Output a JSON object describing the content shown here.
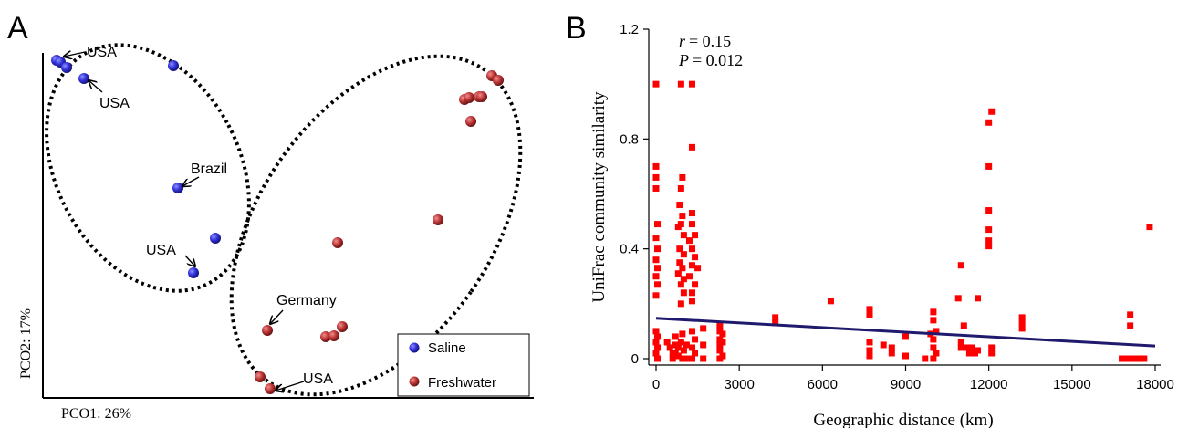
{
  "chart_data": [
    {
      "type": "scatter",
      "panel_label": "A",
      "xlabel": "PCO1: 26%",
      "ylabel": "PCO2: 17%",
      "grid": false,
      "legend_placement": "bottom-right",
      "series": [
        {
          "name": "Saline",
          "color": "#2b2bc8",
          "points": [
            [
              62,
              66
            ],
            [
              66,
              68
            ],
            [
              73,
              74
            ],
            [
              92,
              86
            ],
            [
              190,
              72
            ],
            [
              195,
              206
            ],
            [
              236,
              261
            ],
            [
              212,
              299
            ]
          ]
        },
        {
          "name": "Freshwater",
          "color": "#b83232",
          "points": [
            [
              539,
              83
            ],
            [
              546,
              88
            ],
            [
              509,
              109
            ],
            [
              514,
              107
            ],
            [
              525,
              106
            ],
            [
              528,
              106
            ],
            [
              516,
              133
            ],
            [
              480,
              241
            ],
            [
              370,
              266
            ],
            [
              293,
              362
            ],
            [
              357,
              369
            ],
            [
              366,
              368
            ],
            [
              375,
              358
            ],
            [
              285,
              413
            ],
            [
              296,
              426
            ]
          ]
        }
      ],
      "annotations": [
        {
          "text": "USA",
          "to": [
            70,
            62
          ]
        },
        {
          "text": "USA",
          "to": [
            97,
            88
          ]
        },
        {
          "text": "Brazil",
          "to": [
            200,
            203
          ]
        },
        {
          "text": "USA",
          "to": [
            214,
            292
          ]
        },
        {
          "text": "Germany",
          "to": [
            296,
            356
          ]
        },
        {
          "text": "USA",
          "to": [
            301,
            429
          ]
        }
      ],
      "groups": [
        "saline-cluster",
        "freshwater-cluster"
      ]
    },
    {
      "type": "scatter",
      "panel_label": "B",
      "xlabel": "Geographic distance (km)",
      "ylabel": "UniFrac community similarity",
      "xlim": [
        0,
        18000
      ],
      "ylim": [
        0,
        1.2
      ],
      "x_ticks": [
        "0",
        "3000",
        "6000",
        "9000",
        "12000",
        "15000",
        "18000"
      ],
      "y_ticks": [
        "0",
        "0.4",
        "0.8",
        "1.2"
      ],
      "grid": false,
      "stats": {
        "r": "= 0.15",
        "p": "= 0.012"
      },
      "series": [
        {
          "name": "",
          "color": "#ff0000",
          "points": [
            [
              0,
              1.0
            ],
            [
              0,
              0.7
            ],
            [
              0,
              0.66
            ],
            [
              0,
              0.62
            ],
            [
              50,
              0.49
            ],
            [
              0,
              0.44
            ],
            [
              50,
              0.4
            ],
            [
              0,
              0.36
            ],
            [
              50,
              0.33
            ],
            [
              0,
              0.3
            ],
            [
              50,
              0.27
            ],
            [
              0,
              0.23
            ],
            [
              0,
              0.1
            ],
            [
              50,
              0.08
            ],
            [
              0,
              0.06
            ],
            [
              50,
              0.04
            ],
            [
              0,
              0.02
            ],
            [
              50,
              0.0
            ],
            [
              700,
              0.08
            ],
            [
              700,
              0.05
            ],
            [
              700,
              0.02
            ],
            [
              800,
              0.04
            ],
            [
              800,
              0.01
            ],
            [
              900,
              1.0
            ],
            [
              950,
              0.66
            ],
            [
              900,
              0.62
            ],
            [
              850,
              0.56
            ],
            [
              950,
              0.52
            ],
            [
              900,
              0.49
            ],
            [
              800,
              0.48
            ],
            [
              1000,
              0.45
            ],
            [
              850,
              0.4
            ],
            [
              1000,
              0.38
            ],
            [
              850,
              0.35
            ],
            [
              950,
              0.33
            ],
            [
              800,
              0.31
            ],
            [
              1000,
              0.29
            ],
            [
              900,
              0.27
            ],
            [
              1000,
              0.24
            ],
            [
              900,
              0.2
            ],
            [
              950,
              0.09
            ],
            [
              900,
              0.06
            ],
            [
              1000,
              0.03
            ],
            [
              950,
              0.0
            ],
            [
              1300,
              1.0
            ],
            [
              1300,
              0.77
            ],
            [
              1300,
              0.53
            ],
            [
              1300,
              0.49
            ],
            [
              1400,
              0.45
            ],
            [
              1200,
              0.43
            ],
            [
              1300,
              0.4
            ],
            [
              1400,
              0.37
            ],
            [
              1300,
              0.34
            ],
            [
              1500,
              0.33
            ],
            [
              1200,
              0.3
            ],
            [
              1400,
              0.27
            ],
            [
              1300,
              0.24
            ],
            [
              1300,
              0.21
            ],
            [
              1300,
              0.1
            ],
            [
              1400,
              0.07
            ],
            [
              1300,
              0.04
            ],
            [
              1400,
              0.02
            ],
            [
              1300,
              0.0
            ],
            [
              400,
              0.06
            ],
            [
              500,
              0.04
            ],
            [
              600,
              0.02
            ],
            [
              600,
              0.0
            ],
            [
              1100,
              0.05
            ],
            [
              1100,
              0.0
            ],
            [
              1700,
              0.11
            ],
            [
              1700,
              0.05
            ],
            [
              1700,
              0.0
            ],
            [
              2300,
              0.12
            ],
            [
              2300,
              0.1
            ],
            [
              2300,
              0.07
            ],
            [
              2300,
              0.05
            ],
            [
              2300,
              0.03
            ],
            [
              2300,
              0.0
            ],
            [
              2400,
              0.09
            ],
            [
              2400,
              0.06
            ],
            [
              2400,
              0.01
            ],
            [
              4300,
              0.15
            ],
            [
              4300,
              0.13
            ],
            [
              6300,
              0.21
            ],
            [
              7700,
              0.18
            ],
            [
              7700,
              0.16
            ],
            [
              7700,
              0.06
            ],
            [
              7700,
              0.03
            ],
            [
              7700,
              0.01
            ],
            [
              8200,
              0.05
            ],
            [
              8500,
              0.04
            ],
            [
              8500,
              0.02
            ],
            [
              9000,
              0.08
            ],
            [
              9000,
              0.01
            ],
            [
              9700,
              0.0
            ],
            [
              9900,
              0.09
            ],
            [
              10000,
              0.17
            ],
            [
              10000,
              0.14
            ],
            [
              10100,
              0.1
            ],
            [
              10000,
              0.07
            ],
            [
              10000,
              0.04
            ],
            [
              10100,
              0.02
            ],
            [
              10000,
              0.0
            ],
            [
              10900,
              0.22
            ],
            [
              11000,
              0.34
            ],
            [
              11000,
              0.06
            ],
            [
              11000,
              0.04
            ],
            [
              11100,
              0.12
            ],
            [
              11200,
              0.04
            ],
            [
              11300,
              0.02
            ],
            [
              11400,
              0.04
            ],
            [
              11500,
              0.02
            ],
            [
              11600,
              0.22
            ],
            [
              11600,
              0.03
            ],
            [
              12100,
              0.9
            ],
            [
              12000,
              0.86
            ],
            [
              12000,
              0.7
            ],
            [
              12000,
              0.54
            ],
            [
              12000,
              0.47
            ],
            [
              12000,
              0.43
            ],
            [
              12000,
              0.41
            ],
            [
              12100,
              0.04
            ],
            [
              12100,
              0.02
            ],
            [
              13200,
              0.15
            ],
            [
              13200,
              0.13
            ],
            [
              13200,
              0.11
            ],
            [
              16800,
              0.0
            ],
            [
              17000,
              0.0
            ],
            [
              17200,
              0.0
            ],
            [
              17400,
              0.0
            ],
            [
              17600,
              0.0
            ],
            [
              17100,
              0.16
            ],
            [
              17100,
              0.12
            ],
            [
              17800,
              0.48
            ]
          ]
        }
      ],
      "trendline": {
        "color": "#1f1a6e",
        "from": [
          0,
          0.147
        ],
        "to": [
          18000,
          0.046
        ]
      }
    }
  ],
  "legend": {
    "saline": "Saline",
    "freshwater": "Freshwater"
  },
  "labels": {
    "panel_a": "A",
    "panel_b": "B",
    "usa1": "USA",
    "usa2": "USA",
    "brazil": "Brazil",
    "usa3": "USA",
    "germany": "Germany",
    "usa4": "USA",
    "r_symbol": "r",
    "p_symbol": "P"
  }
}
